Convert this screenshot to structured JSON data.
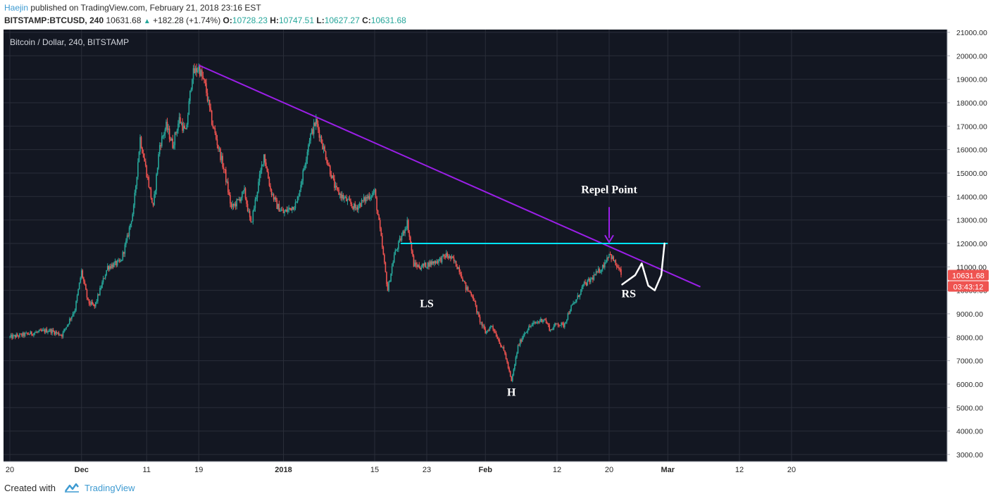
{
  "publish": {
    "author": "Haejin",
    "text": "published on TradingView.com, February 21, 2018 23:16 EST"
  },
  "symbol_bar": {
    "symbol": "BITSTAMP:BTCUSD, 240",
    "last": "10631.68",
    "change": "+182.28 (+1.74%)",
    "o_label": "O:",
    "o": "10728.23",
    "h_label": "H:",
    "h": "10747.51",
    "l_label": "L:",
    "l": "10627.27",
    "c_label": "C:",
    "c": "10631.68"
  },
  "footer": {
    "created": "Created with",
    "brand": "TradingView"
  },
  "colors": {
    "background": "#131722",
    "up": "#26a69a",
    "down": "#ef5350",
    "trendline": "#9b1fe8",
    "support": "#00e5ff",
    "annotation": "#ffffff",
    "price_tag": "#ef5350"
  },
  "chart_data": {
    "type": "candlestick",
    "title": "Bitcoin / Dollar, 240, BITSTAMP",
    "y_ticks": [
      "21000.00",
      "20000.00",
      "19000.00",
      "18000.00",
      "17000.00",
      "16000.00",
      "15000.00",
      "14000.00",
      "13000.00",
      "12000.00",
      "11000.00",
      "10000.00",
      "9000.00",
      "8000.00",
      "7000.00",
      "6000.00",
      "5000.00",
      "4000.00",
      "3000.00"
    ],
    "y_tick_values": [
      21000,
      20000,
      19000,
      18000,
      17000,
      16000,
      15000,
      14000,
      13000,
      12000,
      11000,
      10000,
      9000,
      8000,
      7000,
      6000,
      5000,
      4000,
      3000
    ],
    "x_ticks": [
      {
        "label": "20",
        "day": 0,
        "bold": false
      },
      {
        "label": "Dec",
        "day": 11,
        "bold": true
      },
      {
        "label": "11",
        "day": 21,
        "bold": false
      },
      {
        "label": "19",
        "day": 29,
        "bold": false
      },
      {
        "label": "2018",
        "day": 42,
        "bold": true
      },
      {
        "label": "15",
        "day": 56,
        "bold": false
      },
      {
        "label": "23",
        "day": 64,
        "bold": false
      },
      {
        "label": "Feb",
        "day": 73,
        "bold": true
      },
      {
        "label": "12",
        "day": 84,
        "bold": false
      },
      {
        "label": "20",
        "day": 92,
        "bold": false
      },
      {
        "label": "Mar",
        "day": 101,
        "bold": true
      },
      {
        "label": "12",
        "day": 112,
        "bold": false
      },
      {
        "label": "20",
        "day": 120,
        "bold": false
      }
    ],
    "price_path": [
      [
        0,
        8000
      ],
      [
        4,
        8200
      ],
      [
        6,
        8300
      ],
      [
        8,
        8100
      ],
      [
        10,
        9200
      ],
      [
        11,
        10800
      ],
      [
        12,
        9500
      ],
      [
        13,
        9300
      ],
      [
        15,
        11000
      ],
      [
        17,
        11200
      ],
      [
        18,
        12200
      ],
      [
        19,
        13500
      ],
      [
        20,
        16500
      ],
      [
        21,
        15000
      ],
      [
        22,
        13500
      ],
      [
        23,
        16200
      ],
      [
        24,
        17000
      ],
      [
        25,
        16200
      ],
      [
        26,
        17300
      ],
      [
        27,
        16700
      ],
      [
        28,
        19200
      ],
      [
        29,
        19500
      ],
      [
        30,
        18700
      ],
      [
        31,
        17200
      ],
      [
        33,
        15000
      ],
      [
        34,
        13500
      ],
      [
        35,
        13800
      ],
      [
        36,
        14200
      ],
      [
        37,
        12800
      ],
      [
        39,
        15800
      ],
      [
        40,
        14300
      ],
      [
        41,
        13600
      ],
      [
        42,
        13300
      ],
      [
        44,
        13700
      ],
      [
        45,
        15000
      ],
      [
        46,
        16500
      ],
      [
        47,
        17200
      ],
      [
        48,
        16200
      ],
      [
        50,
        14300
      ],
      [
        51,
        14000
      ],
      [
        53,
        13500
      ],
      [
        55,
        14000
      ],
      [
        56,
        14200
      ],
      [
        57,
        12200
      ],
      [
        58,
        10000
      ],
      [
        59,
        11500
      ],
      [
        61,
        12900
      ],
      [
        62,
        11100
      ],
      [
        63,
        11000
      ],
      [
        64,
        11100
      ],
      [
        66,
        11300
      ],
      [
        67,
        11500
      ],
      [
        68,
        11300
      ],
      [
        69,
        10900
      ],
      [
        70,
        10100
      ],
      [
        71,
        9800
      ],
      [
        72,
        8800
      ],
      [
        73,
        8200
      ],
      [
        74,
        8500
      ],
      [
        75,
        7900
      ],
      [
        76,
        7300
      ],
      [
        77,
        6100
      ],
      [
        78,
        7600
      ],
      [
        79,
        8200
      ],
      [
        80,
        8500
      ],
      [
        82,
        8800
      ],
      [
        83,
        8300
      ],
      [
        84,
        8600
      ],
      [
        85,
        8500
      ],
      [
        86,
        9200
      ],
      [
        87,
        9600
      ],
      [
        88,
        10200
      ],
      [
        89,
        10400
      ],
      [
        91,
        11000
      ],
      [
        92,
        11600
      ],
      [
        93,
        11100
      ],
      [
        94,
        10631
      ]
    ],
    "last_price": "10631.68",
    "countdown": "03:43:12",
    "trendline": {
      "start": [
        29,
        19600
      ],
      "end": [
        106,
        10150
      ]
    },
    "support": {
      "start": [
        60,
        12000
      ],
      "end": [
        101,
        12000
      ]
    },
    "annotations": [
      {
        "text": "Repel Point",
        "day": 92,
        "price": 14150
      },
      {
        "text": "LS",
        "day": 64,
        "price": 9280
      },
      {
        "text": "H",
        "day": 77,
        "price": 5500
      },
      {
        "text": "RS",
        "day": 95,
        "price": 9700
      }
    ],
    "rs_sketch": [
      [
        94,
        10250
      ],
      [
        96,
        10650
      ],
      [
        97,
        11150
      ],
      [
        98,
        10200
      ],
      [
        99,
        10000
      ],
      [
        100,
        10650
      ],
      [
        100.5,
        12000
      ]
    ],
    "arrow": {
      "from": [
        92,
        13550
      ],
      "to": [
        92,
        12050
      ]
    }
  }
}
